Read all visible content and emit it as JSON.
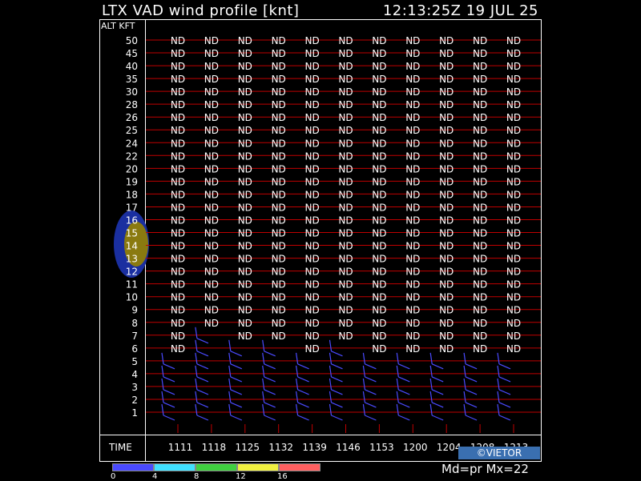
{
  "header": {
    "title": "LTX VAD wind profile [knt]",
    "timestamp": "12:13:25Z 19 JUL 25"
  },
  "footer": {
    "mode": "Md=pr Mx=22",
    "credit": "©VIETOR"
  },
  "colors": {
    "frame": "#ffffff",
    "grid": "#c00000",
    "barb": "#4a4aff",
    "clutter_blue": "#1a2fa0",
    "clutter_yellow": "#8a7a10"
  },
  "legend_scale": {
    "labels": [
      "0",
      "4",
      "8",
      "12",
      "16"
    ],
    "colors": [
      "#4a4aff",
      "#40e0ff",
      "#40d040",
      "#f0f040",
      "#ff6060"
    ]
  },
  "chart_data": {
    "type": "wind-profile",
    "y_axis_title": "ALT KFT",
    "x_axis_title": "TIME",
    "altitudes": [
      "50",
      "45",
      "40",
      "35",
      "30",
      "28",
      "26",
      "25",
      "24",
      "22",
      "20",
      "19",
      "18",
      "17",
      "16",
      "15",
      "14",
      "13",
      "12",
      "11",
      "10",
      "9",
      "8",
      "7",
      "6",
      "5",
      "4",
      "3",
      "2",
      "1"
    ],
    "times": [
      "1111",
      "1118",
      "1125",
      "1132",
      "1139",
      "1146",
      "1153",
      "1200",
      "1204",
      "1208",
      "1213"
    ],
    "no_data_text": "ND",
    "nd_cutoff": [
      6,
      7,
      7,
      7,
      6,
      7,
      6,
      6,
      6,
      6,
      6
    ],
    "nd_exceptions": [
      {
        "time": "1118",
        "alt": "7",
        "barb": true
      },
      {
        "time": "1125",
        "alt": "6",
        "barb": true
      },
      {
        "time": "1132",
        "alt": "6",
        "barb": true
      },
      {
        "time": "1146",
        "alt": "6",
        "barb": true
      }
    ],
    "wind_kt": 10
  }
}
